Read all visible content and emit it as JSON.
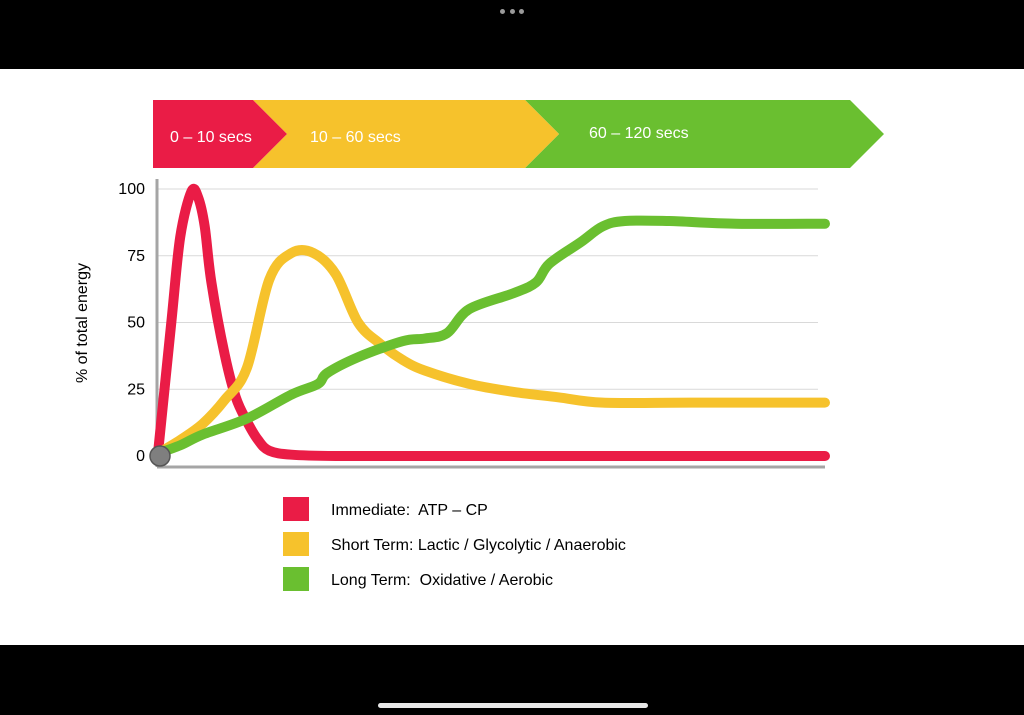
{
  "chart_data": {
    "type": "line",
    "title": "",
    "xlabel": "",
    "ylabel": "% of total energy",
    "ylim": [
      0,
      100
    ],
    "yticks": [
      0,
      25,
      50,
      75,
      100
    ],
    "xlim": [
      0,
      150
    ],
    "grid": true,
    "legend_position": "bottom-center",
    "phases": [
      {
        "label": "0 – 10 secs",
        "color": "#ea1c46"
      },
      {
        "label": "10  – 60 secs",
        "color": "#f6c22c"
      },
      {
        "label": "60  – 120 secs",
        "color": "#6abf30"
      }
    ],
    "series": [
      {
        "name": "Immediate:  ATP – CP",
        "color": "#ea1c46",
        "x": [
          0,
          3,
          5,
          7.5,
          9,
          10.5,
          12,
          15,
          17.5,
          20,
          22.5,
          25,
          30,
          40,
          60,
          100,
          150
        ],
        "y": [
          1,
          50,
          82,
          99,
          97,
          86,
          65,
          38,
          22,
          13,
          6,
          2,
          0.5,
          0,
          0,
          0,
          0
        ]
      },
      {
        "name": "Short Term: Lactic / Glycolytic / Anaerobic",
        "color": "#f6c22c",
        "x": [
          0,
          5,
          10,
          15,
          20,
          25,
          30,
          35,
          40,
          45,
          50,
          55,
          60,
          70,
          80,
          90,
          100,
          120,
          150
        ],
        "y": [
          1,
          6,
          12,
          21,
          33,
          66,
          76,
          76,
          68,
          50,
          42,
          36,
          32,
          27,
          24,
          22,
          20,
          20,
          20
        ]
      },
      {
        "name": "Long Term:  Oxidative / Aerobic",
        "color": "#6abf30",
        "x": [
          0,
          5,
          10,
          20,
          30,
          36,
          38,
          45,
          55,
          60,
          65,
          70,
          80,
          85,
          88,
          95,
          100,
          105,
          115,
          130,
          150
        ],
        "y": [
          1,
          4,
          8,
          14,
          23,
          27,
          31,
          37,
          43,
          44,
          46,
          55,
          61,
          65,
          72,
          80,
          86,
          88,
          88,
          87,
          87
        ]
      }
    ]
  }
}
